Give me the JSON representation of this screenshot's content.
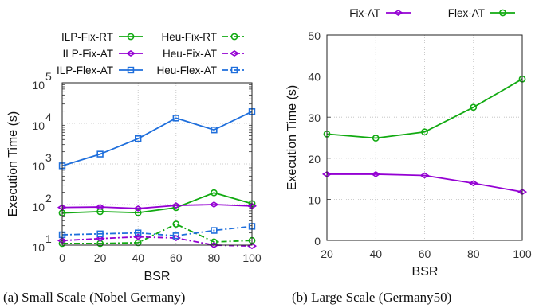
{
  "chart_data": [
    {
      "type": "line",
      "caption": "(a) Small Scale (Nobel Germany)",
      "xlabel": "BSR",
      "ylabel": "Execution Time (s)",
      "yscale": "log",
      "ylim": [
        10,
        100000
      ],
      "xlim": [
        0,
        100
      ],
      "x_ticks": [
        "0",
        "20",
        "40",
        "60",
        "80",
        "100"
      ],
      "y_ticks": [
        "10",
        "10",
        "10",
        "10",
        "10"
      ],
      "y_tick_exponents": [
        "1",
        "2",
        "3",
        "4",
        "5"
      ],
      "grid": true,
      "legend_position": "top",
      "x": [
        0,
        20,
        40,
        60,
        80,
        100
      ],
      "series": [
        {
          "name": "ILP-Fix-RT",
          "color": "#11aa11",
          "style": "solid",
          "marker": "circle",
          "values": [
            62,
            67,
            63,
            84,
            195,
            105
          ]
        },
        {
          "name": "Heu-Fix-RT",
          "color": "#11aa11",
          "style": "dashdot",
          "marker": "circle",
          "values": [
            11,
            11,
            11.5,
            33,
            12,
            13
          ]
        },
        {
          "name": "ILP-Fix-AT",
          "color": "#9400d3",
          "style": "solid",
          "marker": "diamond",
          "values": [
            85,
            87,
            80,
            95,
            100,
            92
          ]
        },
        {
          "name": "Heu-Fix-AT",
          "color": "#9400d3",
          "style": "dashdot",
          "marker": "diamond",
          "values": [
            13,
            14.5,
            16,
            15,
            10,
            9.5
          ]
        },
        {
          "name": "ILP-Flex-AT",
          "color": "#1f6fdc",
          "style": "solid",
          "marker": "square",
          "values": [
            900,
            1750,
            4200,
            13500,
            6900,
            19500
          ]
        },
        {
          "name": "Heu-Flex-AT",
          "color": "#1f6fdc",
          "style": "dashdot",
          "marker": "square",
          "values": [
            18,
            19,
            20,
            17,
            23,
            29
          ]
        }
      ]
    },
    {
      "type": "line",
      "caption": "(b) Large Scale (Germany50)",
      "xlabel": "BSR",
      "ylabel": "Execution Time (s)",
      "ylim": [
        0,
        50
      ],
      "xlim": [
        20,
        100
      ],
      "x_ticks": [
        "20",
        "40",
        "60",
        "80",
        "100"
      ],
      "y_ticks": [
        "0",
        "10",
        "20",
        "30",
        "40",
        "50"
      ],
      "grid": true,
      "legend_position": "top",
      "x": [
        20,
        40,
        60,
        80,
        100
      ],
      "series": [
        {
          "name": "Fix-AT",
          "color": "#9400d3",
          "style": "solid",
          "marker": "diamond",
          "values": [
            16.1,
            16.1,
            15.8,
            13.9,
            11.8
          ]
        },
        {
          "name": "Flex-AT",
          "color": "#11aa11",
          "style": "solid",
          "marker": "circle",
          "values": [
            25.9,
            24.9,
            26.4,
            32.4,
            39.3
          ]
        }
      ]
    }
  ]
}
